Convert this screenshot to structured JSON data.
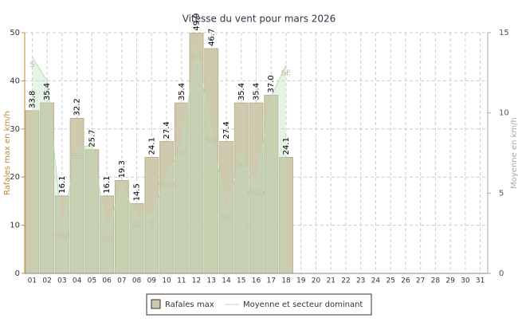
{
  "chart_data": {
    "type": "bar",
    "title": "Vitesse du vent pour mars 2026",
    "ylabel": "Rafales max en km/h",
    "y2label": "Moyenne en km/h",
    "categories": [
      "01",
      "02",
      "03",
      "04",
      "05",
      "06",
      "07",
      "08",
      "09",
      "10",
      "11",
      "12",
      "13",
      "14",
      "15",
      "16",
      "17",
      "18",
      "19",
      "20",
      "21",
      "22",
      "23",
      "24",
      "25",
      "26",
      "27",
      "28",
      "29",
      "30",
      "31"
    ],
    "series": [
      {
        "name": "Rafales max",
        "color": "#cfc9ae",
        "values": [
          33.8,
          35.4,
          16.1,
          32.2,
          25.7,
          16.1,
          19.3,
          14.5,
          24.1,
          27.4,
          35.4,
          49.9,
          46.7,
          27.4,
          35.4,
          35.4,
          37.0,
          24.1,
          null,
          null,
          null,
          null,
          null,
          null,
          null,
          null,
          null,
          null,
          null,
          null,
          null
        ],
        "value_labels": [
          "33.8",
          "35.4",
          "16.1",
          "32.2",
          "25.7",
          "16.1",
          "19.3",
          "14.5",
          "24.1",
          "27.4",
          "35.4",
          "49.9",
          "46.7",
          "27.4",
          "35.4",
          "35.4",
          "37.0",
          "24.1",
          null,
          null,
          null,
          null,
          null,
          null,
          null,
          null,
          null,
          null,
          null,
          null,
          null
        ]
      },
      {
        "name": "Moyenne et secteur dominant",
        "color": "#b9dcb9",
        "axis": "y2",
        "values": [
          13.5,
          12,
          2.8,
          7.8,
          8,
          2.6,
          5.5,
          3.5,
          3.6,
          6,
          8,
          14,
          8.8,
          4,
          7.3,
          5.5,
          11,
          13,
          null,
          null,
          null,
          null,
          null,
          null,
          null,
          null,
          null,
          null,
          null,
          null,
          null
        ],
        "sectors": [
          "S",
          null,
          "ENE",
          "ESE",
          null,
          "SO",
          null,
          "SE",
          "S",
          "SSO",
          "SO",
          "SO",
          "SO",
          "SO",
          "SO",
          "OSO",
          null,
          "SE",
          null,
          null,
          null,
          null,
          null,
          null,
          null,
          null,
          null,
          null,
          null,
          null,
          null
        ]
      }
    ],
    "ylim": [
      0,
      50
    ],
    "yticks": [
      0,
      10,
      20,
      30,
      40,
      50
    ],
    "y2lim": [
      0,
      15
    ],
    "y2ticks": [
      0,
      5,
      10,
      15
    ],
    "grid": true
  }
}
